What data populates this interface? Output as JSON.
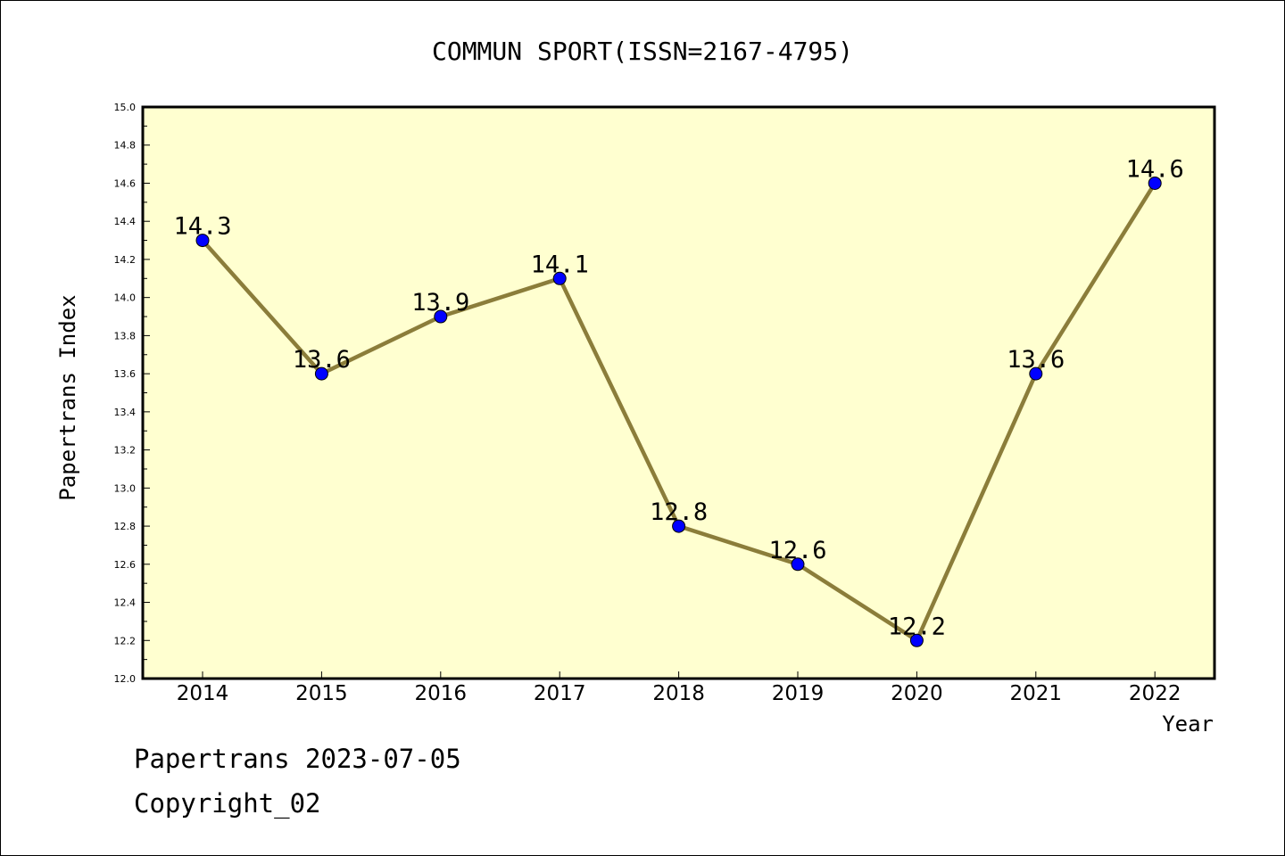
{
  "chart_data": {
    "type": "line",
    "title": "COMMUN SPORT(ISSN=2167-4795)",
    "xlabel": "Year",
    "ylabel": "Papertrans Index",
    "categories": [
      "2014",
      "2015",
      "2016",
      "2017",
      "2018",
      "2019",
      "2020",
      "2021",
      "2022"
    ],
    "series": [
      {
        "values": [
          14.3,
          13.6,
          13.9,
          14.1,
          12.8,
          12.6,
          12.2,
          13.6,
          14.6
        ],
        "data_labels": [
          "14.3",
          "13.6",
          "13.9",
          "14.1",
          "12.8",
          "12.6",
          "12.2",
          "13.6",
          "14.6"
        ]
      }
    ],
    "ylim": [
      12.0,
      15.0
    ],
    "yticks": [
      "12.0",
      "12.2",
      "12.4",
      "12.6",
      "12.8",
      "13.0",
      "13.2",
      "13.4",
      "13.6",
      "13.8",
      "14.0",
      "14.2",
      "14.4",
      "14.6",
      "14.8",
      "15.0"
    ],
    "grid": false,
    "legend": "none",
    "colors": {
      "plot_background": "#ffffd0",
      "line": "#8b7d3a",
      "marker": "#0000ff"
    }
  },
  "footer": {
    "line1": "Papertrans 2023-07-05",
    "line2": "Copyright_02"
  }
}
